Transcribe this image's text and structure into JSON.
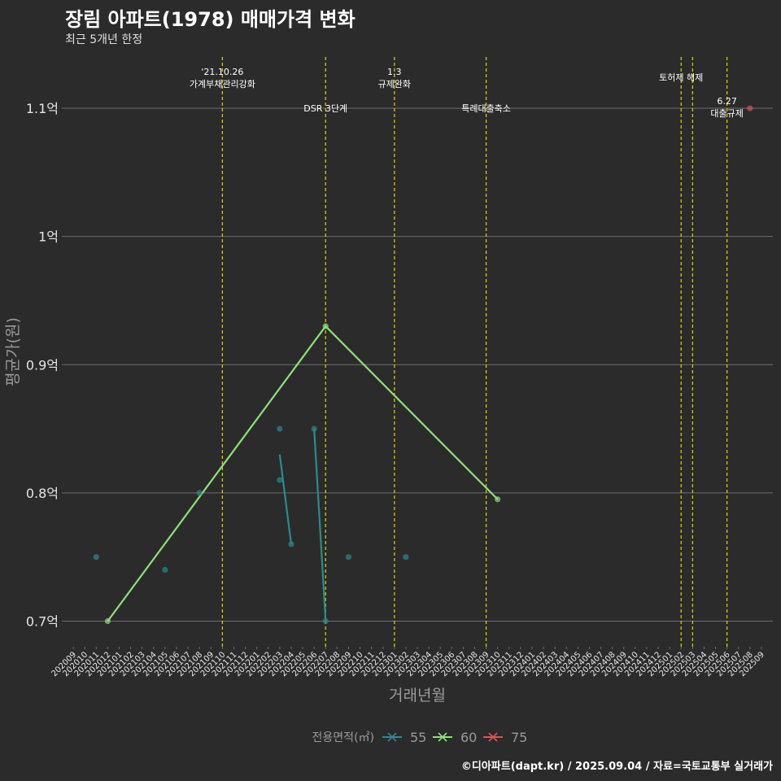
{
  "title": "장림 아파트(1978) 매매가격 변화",
  "subtitle": "최근 5개년 한정",
  "credit": "©디아파트(dapt.kr) / 2025.09.04 / 자료=국토교통부 실거래가",
  "colors": {
    "background": "#2b2b2b",
    "grid": "#6e6e6e",
    "event_line": "#d8d800",
    "text": "#e6e6e6",
    "axis_title": "#9a9a9a",
    "s55": "#2a8c8c",
    "s60": "#90e07a",
    "s75": "#e0505a"
  },
  "chart_data": {
    "type": "line",
    "xlabel": "거래년월",
    "ylabel": "평균가(원)",
    "x_categories": [
      "202009",
      "202010",
      "202011",
      "202012",
      "202101",
      "202102",
      "202103",
      "202104",
      "202105",
      "202106",
      "202107",
      "202108",
      "202109",
      "202110",
      "202111",
      "202112",
      "202201",
      "202202",
      "202203",
      "202204",
      "202205",
      "202206",
      "202207",
      "202208",
      "202209",
      "202210",
      "202211",
      "202212",
      "202301",
      "202302",
      "202303",
      "202304",
      "202305",
      "202306",
      "202307",
      "202308",
      "202309",
      "202310",
      "202311",
      "202312",
      "202401",
      "202402",
      "202403",
      "202404",
      "202405",
      "202406",
      "202407",
      "202408",
      "202409",
      "202410",
      "202411",
      "202412",
      "202501",
      "202502",
      "202503",
      "202504",
      "202505",
      "202506",
      "202507",
      "202508",
      "202509"
    ],
    "y_ticks": [
      {
        "value": 0.7,
        "label": "0.7억"
      },
      {
        "value": 0.8,
        "label": "0.8억"
      },
      {
        "value": 0.9,
        "label": "0.9억"
      },
      {
        "value": 1.0,
        "label": "1억"
      },
      {
        "value": 1.1,
        "label": "1.1억"
      }
    ],
    "ylim": [
      0.68,
      1.14
    ],
    "y_unit": "억",
    "legend": {
      "title": "전용면적(㎡)",
      "position": "bottom",
      "items": [
        {
          "label": "55",
          "series": "s55"
        },
        {
          "label": "60",
          "series": "s60"
        },
        {
          "label": "75",
          "series": "s75"
        }
      ]
    },
    "series": [
      {
        "key": "s55",
        "name": "55",
        "lines": [
          [
            [
              "202203",
              0.83
            ],
            [
              "202204",
              0.76
            ]
          ],
          [
            [
              "202206",
              0.85
            ],
            [
              "202207",
              0.7
            ]
          ]
        ],
        "points": [
          [
            "202011",
            0.75
          ],
          [
            "202105",
            0.74
          ],
          [
            "202108",
            0.8
          ],
          [
            "202203",
            0.85
          ],
          [
            "202203",
            0.81
          ],
          [
            "202204",
            0.76
          ],
          [
            "202206",
            0.85
          ],
          [
            "202207",
            0.7
          ],
          [
            "202209",
            0.75
          ],
          [
            "202302",
            0.75
          ]
        ]
      },
      {
        "key": "s60",
        "name": "60",
        "lines": [
          [
            [
              "202012",
              0.7
            ],
            [
              "202207",
              0.93
            ],
            [
              "202310",
              0.795
            ]
          ]
        ],
        "points": [
          [
            "202012",
            0.7
          ],
          [
            "202207",
            0.93
          ],
          [
            "202310",
            0.795
          ]
        ]
      },
      {
        "key": "s75",
        "name": "75",
        "lines": [],
        "points": [
          [
            "202508",
            1.1
          ]
        ]
      }
    ],
    "events": [
      {
        "x": "202110",
        "lines": [
          "'21.10.26",
          "가계부채관리강화"
        ],
        "level": 0
      },
      {
        "x": "202207",
        "lines": [
          "DSR 3단계"
        ],
        "level": 2
      },
      {
        "x": "202301",
        "lines": [
          "1.3",
          "규제완화"
        ],
        "level": 0
      },
      {
        "x": "202309",
        "lines": [
          "특례대출축소"
        ],
        "level": 2
      },
      {
        "x": "202502",
        "lines": [
          "토허제 해제"
        ],
        "level": 1
      },
      {
        "x": "202503",
        "lines": [],
        "level": 0
      },
      {
        "x": "202506",
        "lines": [
          "6.27",
          "대출규제"
        ],
        "level": 3
      }
    ]
  }
}
